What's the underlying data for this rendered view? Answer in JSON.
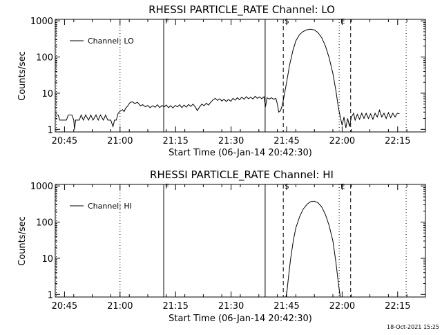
{
  "timestamp": "18-Oct-2021 15:25",
  "chart_data": [
    {
      "type": "line",
      "title": "RHESSI PARTICLE_RATE Channel: LO",
      "xlabel": "Start Time (06-Jan-14 20:42:30)",
      "ylabel": "Counts/sec",
      "x_unit": "minutes after 20:42:30",
      "xlim": [
        0,
        100
      ],
      "ylim": [
        0.85,
        1100
      ],
      "yscale": "log",
      "x_ticks": [
        2.5,
        17.5,
        32.5,
        47.5,
        62.5,
        77.5,
        92.5
      ],
      "x_tick_labels": [
        "20:45",
        "21:00",
        "21:15",
        "21:30",
        "21:45",
        "22:00",
        "22:15"
      ],
      "y_ticks": [
        1,
        10,
        100,
        1000
      ],
      "y_tick_labels": [
        "1",
        "10",
        "100",
        "1000"
      ],
      "legend": "Channel: LO",
      "legend_position": "top-left",
      "markers": [
        {
          "x": 0.3,
          "style": "dotted",
          "label": ""
        },
        {
          "x": 17.5,
          "style": "dotted",
          "label": ""
        },
        {
          "x": 29.3,
          "style": "solid",
          "label": "F"
        },
        {
          "x": 56.7,
          "style": "solid",
          "label": ""
        },
        {
          "x": 61.6,
          "style": "dashed",
          "label": "S"
        },
        {
          "x": 76.7,
          "style": "dotted",
          "label": "E"
        },
        {
          "x": 79.8,
          "style": "dashed",
          "label": ""
        },
        {
          "x": 94.8,
          "style": "dotted",
          "label": ""
        }
      ],
      "series": [
        {
          "points": [
            [
              0,
              2.5
            ],
            [
              0.8,
              2.5
            ],
            [
              1.2,
              1.8
            ],
            [
              3,
              1.8
            ],
            [
              3.5,
              2.5
            ],
            [
              4.5,
              2.5
            ],
            [
              5,
              1.8
            ],
            [
              5.2,
              1.0
            ],
            [
              5.5,
              1.8
            ],
            [
              6.5,
              1.8
            ],
            [
              7,
              2.5
            ],
            [
              7.6,
              1.8
            ],
            [
              8.2,
              2.5
            ],
            [
              9,
              1.8
            ],
            [
              9.6,
              2.5
            ],
            [
              10.2,
              1.8
            ],
            [
              11,
              2.5
            ],
            [
              11.6,
              1.8
            ],
            [
              12.2,
              2.5
            ],
            [
              13,
              1.8
            ],
            [
              13.6,
              2.5
            ],
            [
              14.2,
              1.8
            ],
            [
              15,
              1.8
            ],
            [
              15.6,
              1.2
            ],
            [
              16,
              1.8
            ],
            [
              16.5,
              1.8
            ],
            [
              17,
              2.8
            ],
            [
              17.6,
              3.2
            ],
            [
              18.2,
              3.5
            ],
            [
              18.6,
              3.1
            ],
            [
              19,
              3.8
            ],
            [
              19.6,
              4.5
            ],
            [
              20.2,
              5.5
            ],
            [
              20.8,
              5.8
            ],
            [
              21.5,
              5.2
            ],
            [
              22.2,
              5.6
            ],
            [
              23,
              4.5
            ],
            [
              23.6,
              4.8
            ],
            [
              24.4,
              4.2
            ],
            [
              25,
              4.6
            ],
            [
              25.6,
              4.0
            ],
            [
              26.3,
              4.5
            ],
            [
              27,
              4.1
            ],
            [
              27.6,
              4.8
            ],
            [
              28.2,
              4.0
            ],
            [
              28.8,
              4.6
            ],
            [
              29.4,
              4.2
            ],
            [
              30,
              4.7
            ],
            [
              30.6,
              4.0
            ],
            [
              31.2,
              4.5
            ],
            [
              31.8,
              3.9
            ],
            [
              32.4,
              4.6
            ],
            [
              33,
              4.2
            ],
            [
              33.6,
              4.8
            ],
            [
              34.2,
              4.0
            ],
            [
              34.8,
              4.7
            ],
            [
              35.4,
              4.1
            ],
            [
              36,
              4.9
            ],
            [
              36.6,
              4.3
            ],
            [
              37.2,
              5.0
            ],
            [
              37.8,
              4.2
            ],
            [
              38.4,
              3.3
            ],
            [
              39,
              4.2
            ],
            [
              39.6,
              5.0
            ],
            [
              40.2,
              4.5
            ],
            [
              40.8,
              5.3
            ],
            [
              41.4,
              4.7
            ],
            [
              42,
              5.6
            ],
            [
              42.6,
              6.5
            ],
            [
              43.2,
              7.2
            ],
            [
              43.8,
              6.3
            ],
            [
              44.4,
              7.0
            ],
            [
              45,
              6.1
            ],
            [
              45.6,
              6.8
            ],
            [
              46.2,
              5.9
            ],
            [
              46.8,
              6.7
            ],
            [
              47.4,
              6.0
            ],
            [
              48,
              7.2
            ],
            [
              48.6,
              6.4
            ],
            [
              49.2,
              7.5
            ],
            [
              49.8,
              6.6
            ],
            [
              50.4,
              7.8
            ],
            [
              51,
              6.8
            ],
            [
              51.6,
              8.0
            ],
            [
              52.2,
              7.0
            ],
            [
              52.8,
              7.8
            ],
            [
              53.4,
              6.9
            ],
            [
              54,
              8.2
            ],
            [
              54.6,
              7.2
            ],
            [
              55.2,
              7.9
            ],
            [
              55.8,
              7.0
            ],
            [
              56.4,
              8.0
            ],
            [
              56.8,
              4.2
            ],
            [
              57.2,
              7.5
            ],
            [
              57.8,
              6.9
            ],
            [
              58.4,
              7.5
            ],
            [
              59,
              6.8
            ],
            [
              59.6,
              7.2
            ],
            [
              60,
              5.0
            ],
            [
              60.4,
              3.0
            ],
            [
              60.8,
              3.2
            ],
            [
              61.3,
              4.5
            ],
            [
              61.8,
              8.0
            ],
            [
              62.5,
              20
            ],
            [
              63.3,
              60
            ],
            [
              64.2,
              150
            ],
            [
              65,
              280
            ],
            [
              66,
              420
            ],
            [
              67,
              510
            ],
            [
              68,
              570
            ],
            [
              69,
              590
            ],
            [
              70,
              560
            ],
            [
              71,
              470
            ],
            [
              72,
              340
            ],
            [
              73,
              200
            ],
            [
              74,
              95
            ],
            [
              75,
              35
            ],
            [
              75.8,
              12
            ],
            [
              76.5,
              4
            ],
            [
              77,
              2.2
            ],
            [
              77.5,
              1.3
            ],
            [
              78,
              2.2
            ],
            [
              78.5,
              1.1
            ],
            [
              79,
              2.0
            ],
            [
              79.5,
              1.2
            ],
            [
              80,
              2.2
            ],
            [
              80.6,
              2.8
            ],
            [
              81,
              1.8
            ],
            [
              81.6,
              2.6
            ],
            [
              82.2,
              1.9
            ],
            [
              82.8,
              2.8
            ],
            [
              83.4,
              2.0
            ],
            [
              84,
              2.8
            ],
            [
              84.6,
              2.0
            ],
            [
              85.2,
              2.7
            ],
            [
              85.8,
              1.9
            ],
            [
              86.4,
              2.8
            ],
            [
              87,
              2.2
            ],
            [
              87.6,
              3.4
            ],
            [
              88.2,
              2.2
            ],
            [
              88.8,
              2.8
            ],
            [
              89.4,
              2.0
            ],
            [
              90,
              2.9
            ],
            [
              90.6,
              2.1
            ],
            [
              91.2,
              2.8
            ],
            [
              91.8,
              2.2
            ],
            [
              92.4,
              2.8
            ],
            [
              93,
              2.7
            ]
          ]
        }
      ]
    },
    {
      "type": "line",
      "title": "RHESSI PARTICLE_RATE Channel: HI",
      "xlabel": "Start Time (06-Jan-14 20:42:30)",
      "ylabel": "Counts/sec",
      "x_unit": "minutes after 20:42:30",
      "xlim": [
        0,
        100
      ],
      "ylim": [
        0.85,
        1100
      ],
      "yscale": "log",
      "x_ticks": [
        2.5,
        17.5,
        32.5,
        47.5,
        62.5,
        77.5,
        92.5
      ],
      "x_tick_labels": [
        "20:45",
        "21:00",
        "21:15",
        "21:30",
        "21:45",
        "22:00",
        "22:15"
      ],
      "y_ticks": [
        1,
        10,
        100,
        1000
      ],
      "y_tick_labels": [
        "1",
        "10",
        "100",
        "1000"
      ],
      "legend": "Channel: HI",
      "legend_position": "top-left",
      "markers": [
        {
          "x": 0.3,
          "style": "dotted",
          "label": ""
        },
        {
          "x": 17.5,
          "style": "dotted",
          "label": ""
        },
        {
          "x": 29.3,
          "style": "solid",
          "label": "F"
        },
        {
          "x": 56.7,
          "style": "solid",
          "label": ""
        },
        {
          "x": 61.6,
          "style": "dashed",
          "label": "S"
        },
        {
          "x": 76.7,
          "style": "dotted",
          "label": "E"
        },
        {
          "x": 79.8,
          "style": "dashed",
          "label": ""
        },
        {
          "x": 94.8,
          "style": "dotted",
          "label": ""
        }
      ],
      "series": [
        {
          "points": [
            [
              62.3,
              0.85
            ],
            [
              62.6,
              1.2
            ],
            [
              63,
              3
            ],
            [
              63.6,
              10
            ],
            [
              64.3,
              30
            ],
            [
              65,
              70
            ],
            [
              66,
              140
            ],
            [
              67,
              230
            ],
            [
              68,
              310
            ],
            [
              69,
              370
            ],
            [
              70,
              380
            ],
            [
              71,
              340
            ],
            [
              72,
              260
            ],
            [
              73,
              160
            ],
            [
              74,
              80
            ],
            [
              75,
              30
            ],
            [
              75.8,
              8
            ],
            [
              76.5,
              2
            ],
            [
              77,
              0.85
            ]
          ]
        }
      ]
    }
  ]
}
